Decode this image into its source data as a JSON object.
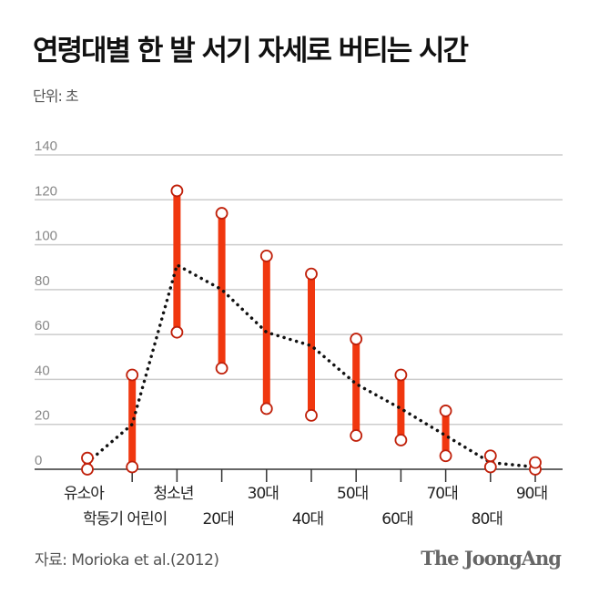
{
  "title": "연령대별 한 발 서기 자세로 버티는 시간",
  "unit_label": "단위: 초",
  "source": "자료: Morioka et al.(2012)",
  "logo": "The JoongAng",
  "colors": {
    "bar": "#f0370f",
    "marker_stroke": "#c0200a",
    "average_line": "#111111",
    "grid": "#cccccc"
  },
  "chart_data": {
    "type": "range-bar",
    "title": "연령대별 한 발 서기 자세로 버티는 시간",
    "ylabel": "단위: 초",
    "ylim": [
      0,
      140
    ],
    "yticks": [
      0,
      20,
      40,
      60,
      80,
      100,
      120,
      140
    ],
    "grid": true,
    "categories": [
      "유소아",
      "학동기 어린이",
      "청소년",
      "20대",
      "30대",
      "40대",
      "50대",
      "60대",
      "70대",
      "80대",
      "90대"
    ],
    "series": [
      {
        "type": "range",
        "min": [
          0,
          1,
          61,
          45,
          27,
          24,
          15,
          13,
          6,
          1,
          0
        ],
        "max": [
          5,
          42,
          124,
          114,
          95,
          87,
          58,
          42,
          26,
          6,
          3
        ]
      },
      {
        "type": "dotted-line",
        "values": [
          3,
          20,
          91,
          80,
          61,
          55,
          38,
          27,
          15,
          3,
          1
        ]
      }
    ]
  }
}
